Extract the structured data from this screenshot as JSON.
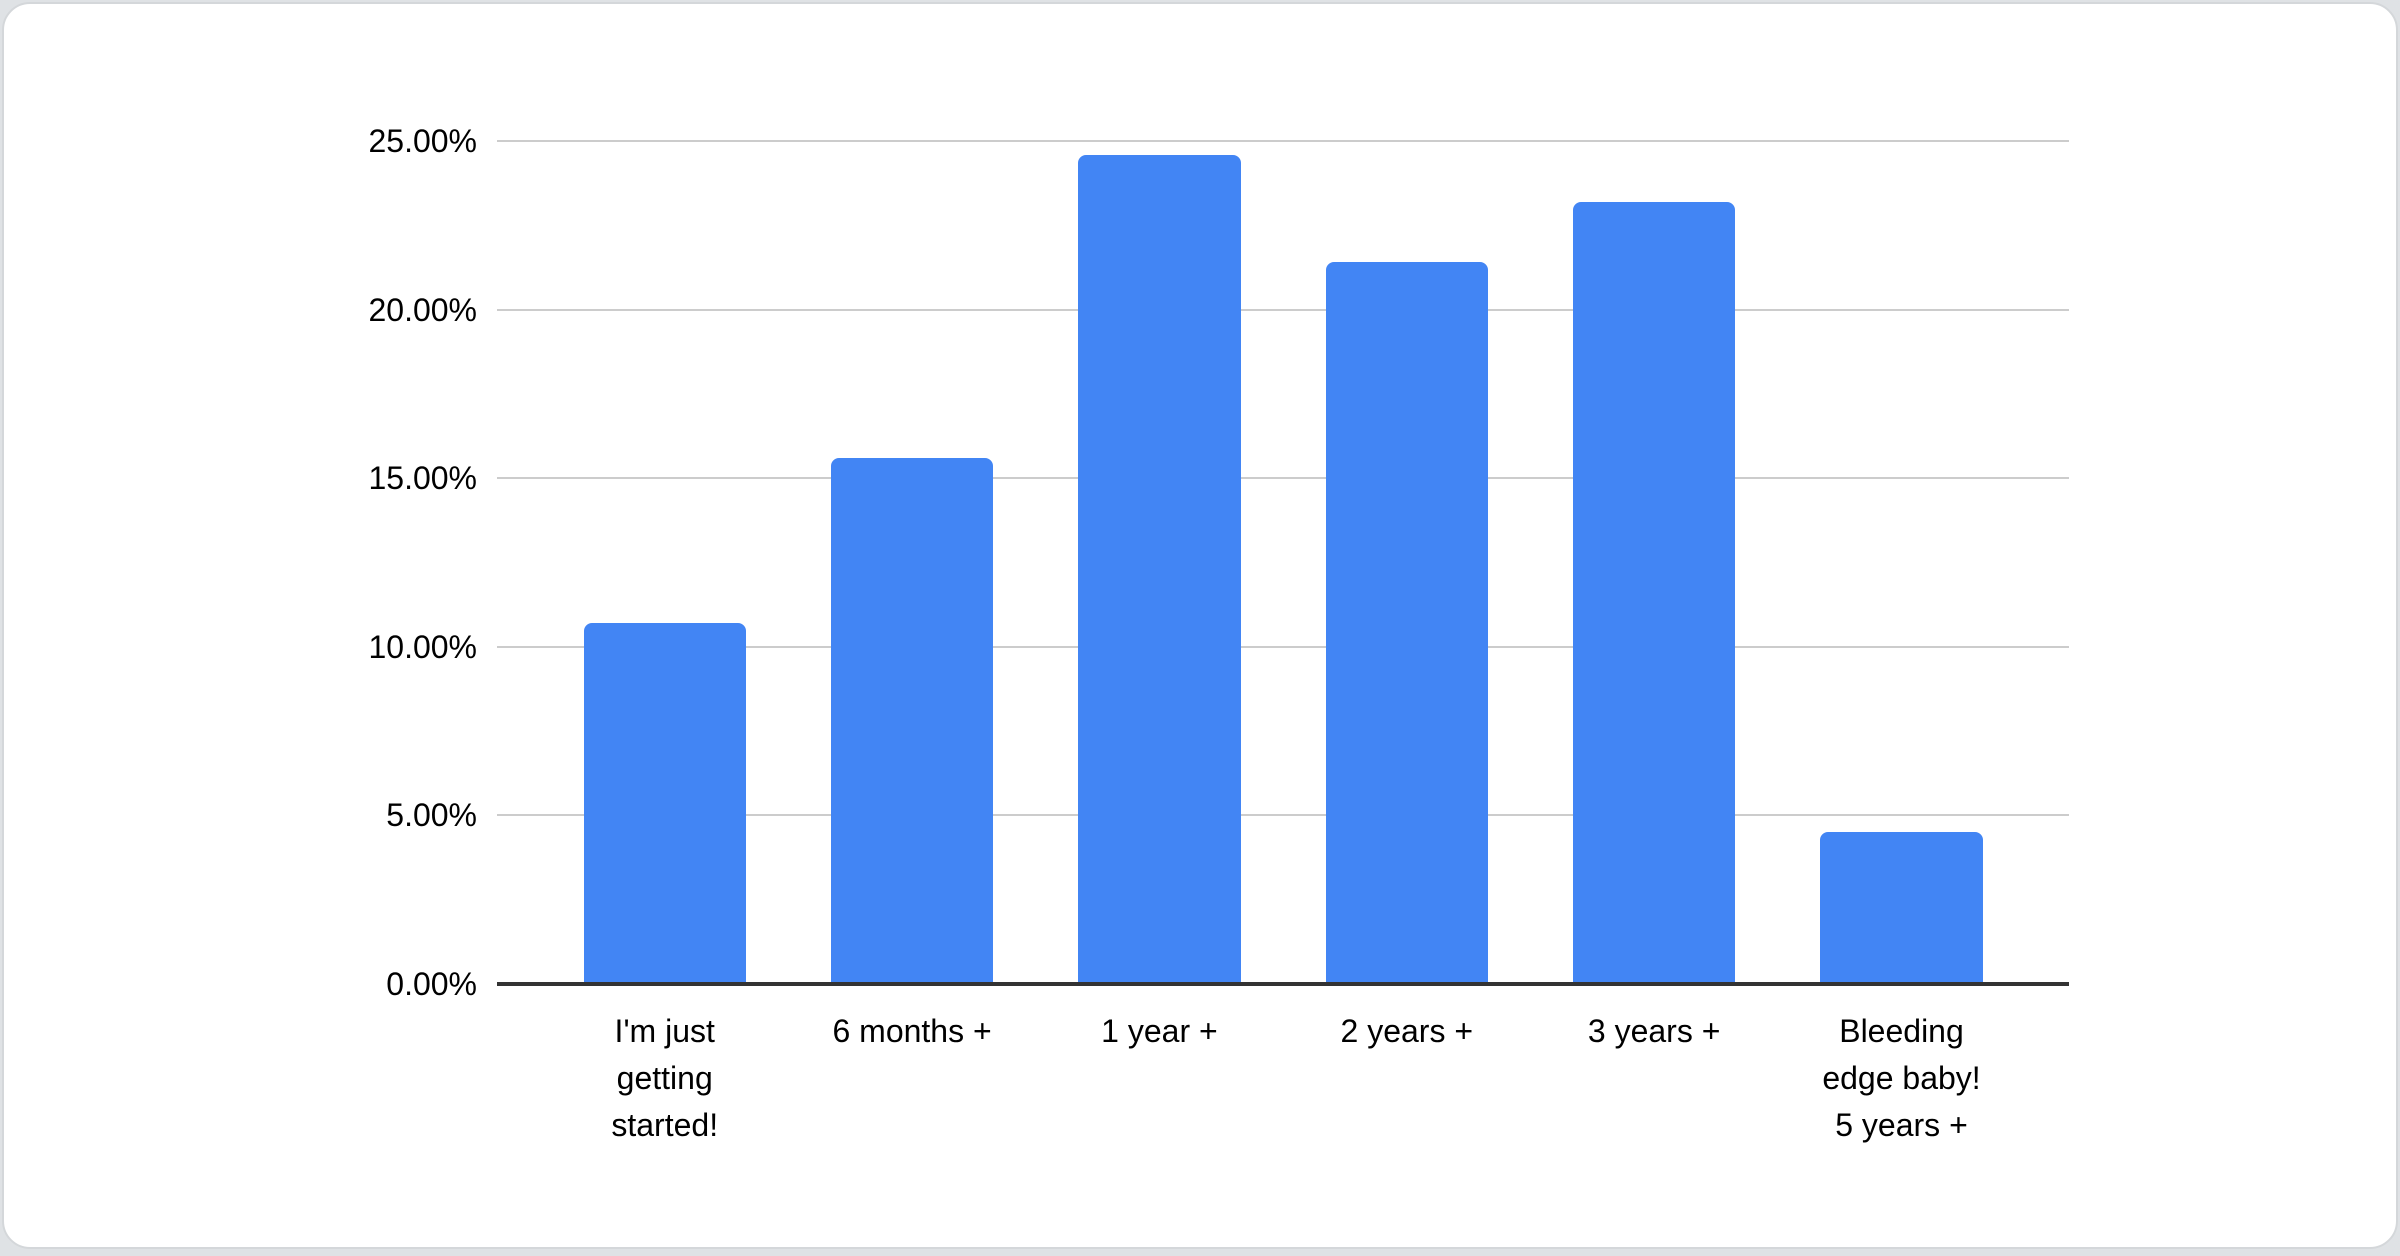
{
  "page": {
    "background_color": "#dfe2e5",
    "card_background_color": "#ffffff",
    "card_border_color": "#d4d7da"
  },
  "chart_data": {
    "type": "bar",
    "title": "",
    "xlabel": "",
    "ylabel": "",
    "categories": [
      "I'm just\ngetting\nstarted!",
      "6 months +",
      "1 year +",
      "2 years +",
      "3 years +",
      "Bleeding\nedge baby!\n5 years +"
    ],
    "values": [
      10.7,
      15.6,
      24.6,
      21.4,
      23.2,
      4.5
    ],
    "value_unit": "%",
    "ylim": [
      0,
      25
    ],
    "y_ticks": [
      0,
      5,
      10,
      15,
      20,
      25
    ],
    "y_tick_labels": [
      "0.00%",
      "5.00%",
      "10.00%",
      "15.00%",
      "20.00%",
      "25.00%"
    ],
    "legend": "none",
    "grid": true,
    "bar_color": "#4285f4",
    "gridline_color": "#cccccc",
    "axis_line_color": "#333333",
    "label_color": "#000000"
  }
}
